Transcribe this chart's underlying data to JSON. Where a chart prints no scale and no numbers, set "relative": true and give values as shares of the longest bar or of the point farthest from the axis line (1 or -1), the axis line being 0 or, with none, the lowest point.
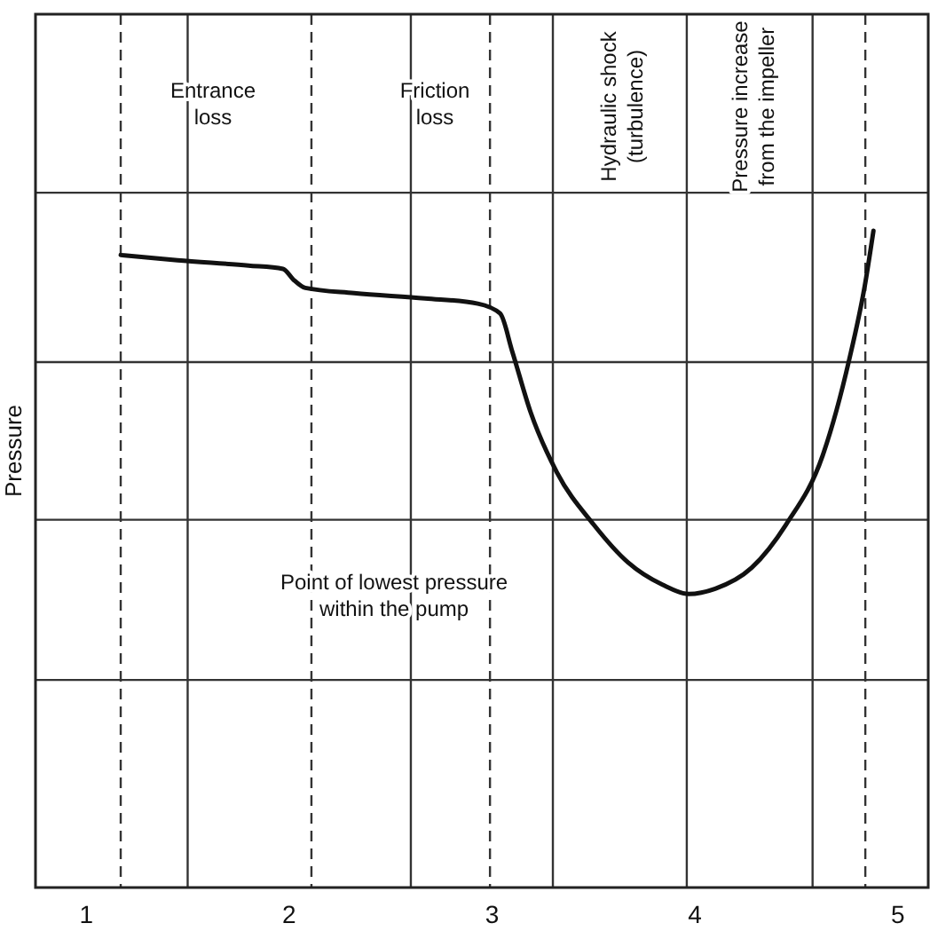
{
  "chart_data": {
    "type": "line",
    "relative": true,
    "ylabel": "Pressure",
    "color": "#111111",
    "x": [
      1.17,
      1.45,
      1.8,
      1.97,
      2.02,
      2.08,
      2.32,
      2.67,
      2.93,
      3.04,
      3.1,
      3.19,
      3.32,
      3.5,
      3.67,
      3.84,
      3.97,
      4.1,
      4.28,
      4.45,
      4.63,
      4.76,
      4.84,
      4.88
    ],
    "values": [
      0.963,
      0.955,
      0.947,
      0.942,
      0.926,
      0.913,
      0.905,
      0.897,
      0.889,
      0.874,
      0.816,
      0.724,
      0.632,
      0.553,
      0.495,
      0.461,
      0.447,
      0.455,
      0.487,
      0.553,
      0.658,
      0.803,
      0.921,
      1
    ],
    "xlim": [
      0.75,
      5.15
    ],
    "xticks": [
      1,
      2,
      3,
      4,
      5
    ],
    "ref_lines": [
      {
        "axis": "x",
        "value": 1.17,
        "line_style": "dashed"
      },
      {
        "axis": "x",
        "value": 2.11,
        "line_style": "dashed"
      },
      {
        "axis": "x",
        "value": 2.99,
        "line_style": "dashed"
      },
      {
        "axis": "x",
        "value": 4.84,
        "line_style": "dashed"
      },
      {
        "axis": "x",
        "value": 1.5,
        "line_style": "solid"
      },
      {
        "axis": "x",
        "value": 2.6,
        "line_style": "solid"
      },
      {
        "axis": "x",
        "value": 3.3,
        "line_style": "solid"
      },
      {
        "axis": "x",
        "value": 3.96,
        "line_style": "solid"
      },
      {
        "axis": "x",
        "value": 4.58,
        "line_style": "solid"
      },
      {
        "axis": "y",
        "value": 0.316,
        "line_style": "solid"
      },
      {
        "axis": "y",
        "value": 0.56,
        "line_style": "solid"
      },
      {
        "axis": "y",
        "value": 0.8,
        "line_style": "solid"
      },
      {
        "axis": "y",
        "value": 1.058,
        "line_style": "solid"
      }
    ],
    "annotations": [
      "Entrance\nloss",
      "Friction\nloss",
      "Hydraulic shock\n(turbulence)",
      "Pressure increase\nfrom the impeller",
      "Point of lowest pressure\nwithin the pump"
    ]
  }
}
